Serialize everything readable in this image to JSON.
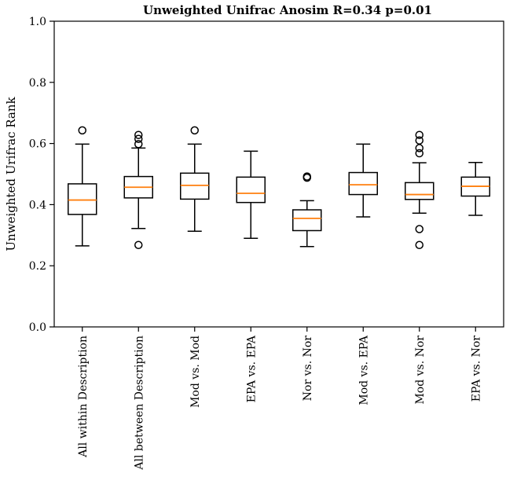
{
  "chart_data": {
    "type": "box",
    "title": "Unweighted Unifrac Anosim R=0.34 p=0.01",
    "xlabel": "",
    "ylabel": "Unweighted Urifrac Rank",
    "ylim": [
      0.0,
      1.0
    ],
    "yticks": [
      "0.0",
      "0.2",
      "0.4",
      "0.6",
      "0.8",
      "1.0"
    ],
    "yticks_values": [
      0.0,
      0.2,
      0.4,
      0.6,
      0.8,
      1.0
    ],
    "grid": false,
    "categories": [
      "All within Description",
      "All between Description",
      "Mod vs. Mod",
      "EPA vs. EPA",
      "Nor vs. Nor",
      "Mod vs. EPA",
      "Mod vs. Nor",
      "EPA vs. Nor"
    ],
    "boxes": [
      {
        "whisker_low": 0.265,
        "q1": 0.368,
        "median": 0.415,
        "q3": 0.468,
        "whisker_high": 0.598,
        "outliers": [
          0.643
        ]
      },
      {
        "whisker_low": 0.322,
        "q1": 0.422,
        "median": 0.457,
        "q3": 0.492,
        "whisker_high": 0.585,
        "outliers": [
          0.268,
          0.598,
          0.615,
          0.628
        ]
      },
      {
        "whisker_low": 0.313,
        "q1": 0.418,
        "median": 0.463,
        "q3": 0.503,
        "whisker_high": 0.598,
        "outliers": [
          0.643
        ]
      },
      {
        "whisker_low": 0.29,
        "q1": 0.407,
        "median": 0.437,
        "q3": 0.49,
        "whisker_high": 0.575,
        "outliers": []
      },
      {
        "whisker_low": 0.263,
        "q1": 0.315,
        "median": 0.355,
        "q3": 0.383,
        "whisker_high": 0.413,
        "outliers": [
          0.488,
          0.492
        ]
      },
      {
        "whisker_low": 0.36,
        "q1": 0.433,
        "median": 0.465,
        "q3": 0.505,
        "whisker_high": 0.598,
        "outliers": []
      },
      {
        "whisker_low": 0.372,
        "q1": 0.417,
        "median": 0.433,
        "q3": 0.472,
        "whisker_high": 0.537,
        "outliers": [
          0.268,
          0.32,
          0.568,
          0.585,
          0.61,
          0.628
        ]
      },
      {
        "whisker_low": 0.365,
        "q1": 0.428,
        "median": 0.46,
        "q3": 0.49,
        "whisker_high": 0.538,
        "outliers": []
      }
    ],
    "colors": {
      "box": "#000000",
      "median": "#ff7f0e",
      "outlier": "#000000"
    }
  }
}
